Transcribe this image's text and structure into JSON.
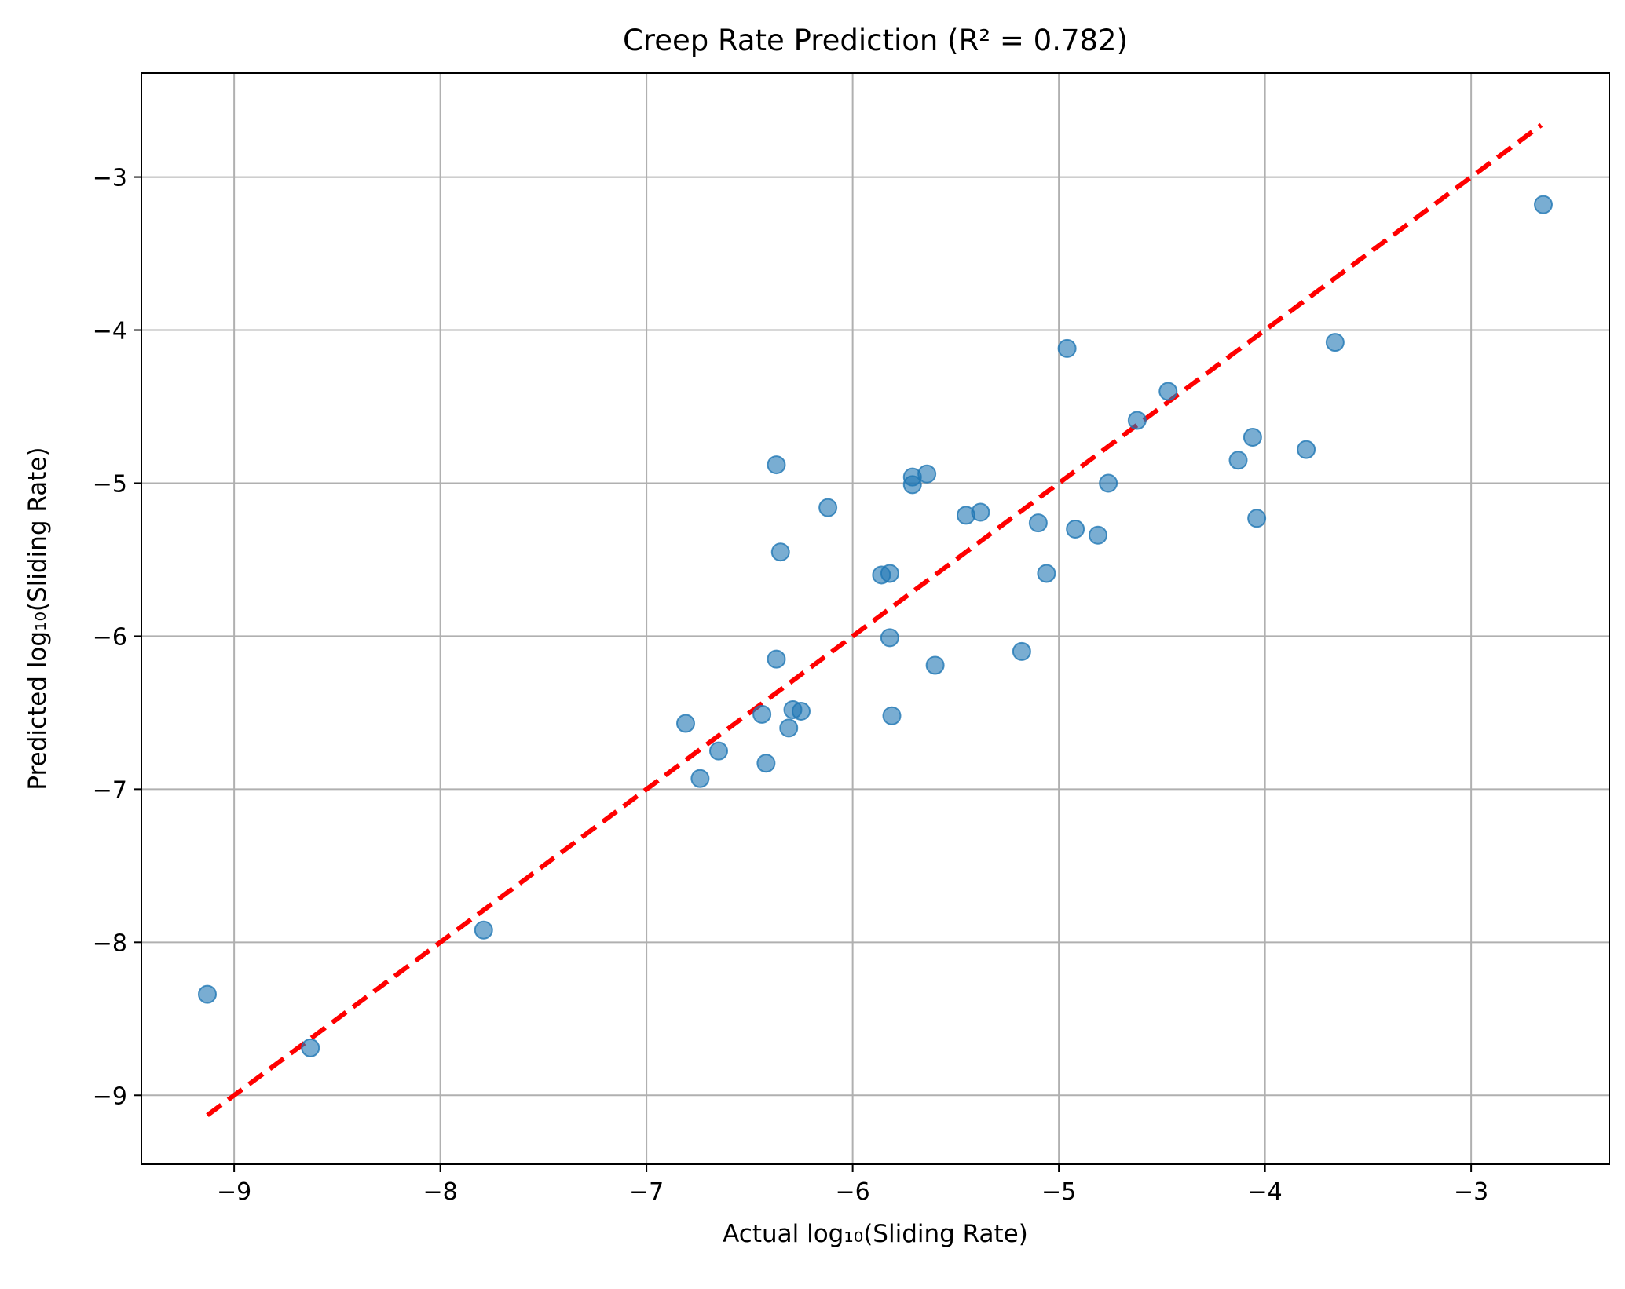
{
  "chart_data": {
    "type": "scatter",
    "title": "Creep Rate Prediction (R² = 0.782)",
    "xlabel": "Actual log₁₀(Sliding Rate)",
    "ylabel": "Predicted log₁₀(Sliding Rate)",
    "xlim": [
      -9.45,
      -2.33
    ],
    "ylim": [
      -9.45,
      -2.32
    ],
    "xticks": [
      -9,
      -8,
      -7,
      -6,
      -5,
      -4,
      -3
    ],
    "yticks": [
      -9,
      -8,
      -7,
      -6,
      -5,
      -4,
      -3
    ],
    "xtick_labels": [
      "−9",
      "−8",
      "−7",
      "−6",
      "−5",
      "−4",
      "−3"
    ],
    "ytick_labels": [
      "−9",
      "−8",
      "−7",
      "−6",
      "−5",
      "−4",
      "−3"
    ],
    "grid": true,
    "point_color": "#1f77b4",
    "point_alpha": 0.6,
    "reference_line": {
      "style": "dashed",
      "color": "#ff0000",
      "from": [
        -9.13,
        -9.13
      ],
      "to": [
        -2.66,
        -2.66
      ]
    },
    "points": [
      {
        "x": -9.13,
        "y": -8.34
      },
      {
        "x": -8.63,
        "y": -8.69
      },
      {
        "x": -7.79,
        "y": -7.92
      },
      {
        "x": -6.81,
        "y": -6.57
      },
      {
        "x": -6.74,
        "y": -6.93
      },
      {
        "x": -6.65,
        "y": -6.75
      },
      {
        "x": -6.44,
        "y": -6.51
      },
      {
        "x": -6.42,
        "y": -6.83
      },
      {
        "x": -6.37,
        "y": -4.88
      },
      {
        "x": -6.37,
        "y": -6.15
      },
      {
        "x": -6.35,
        "y": -5.45
      },
      {
        "x": -6.31,
        "y": -6.6
      },
      {
        "x": -6.29,
        "y": -6.48
      },
      {
        "x": -6.25,
        "y": -6.49
      },
      {
        "x": -6.12,
        "y": -5.16
      },
      {
        "x": -5.86,
        "y": -5.6
      },
      {
        "x": -5.82,
        "y": -5.59
      },
      {
        "x": -5.82,
        "y": -6.01
      },
      {
        "x": -5.81,
        "y": -6.52
      },
      {
        "x": -5.71,
        "y": -4.96
      },
      {
        "x": -5.71,
        "y": -5.01
      },
      {
        "x": -5.64,
        "y": -4.94
      },
      {
        "x": -5.6,
        "y": -6.19
      },
      {
        "x": -5.45,
        "y": -5.21
      },
      {
        "x": -5.38,
        "y": -5.19
      },
      {
        "x": -5.18,
        "y": -6.1
      },
      {
        "x": -5.1,
        "y": -5.26
      },
      {
        "x": -5.06,
        "y": -5.59
      },
      {
        "x": -4.96,
        "y": -4.12
      },
      {
        "x": -4.92,
        "y": -5.3
      },
      {
        "x": -4.81,
        "y": -5.34
      },
      {
        "x": -4.76,
        "y": -5.0
      },
      {
        "x": -4.62,
        "y": -4.59
      },
      {
        "x": -4.47,
        "y": -4.4
      },
      {
        "x": -4.13,
        "y": -4.85
      },
      {
        "x": -4.06,
        "y": -4.7
      },
      {
        "x": -4.04,
        "y": -5.23
      },
      {
        "x": -3.8,
        "y": -4.78
      },
      {
        "x": -3.66,
        "y": -4.08
      },
      {
        "x": -2.65,
        "y": -3.18
      }
    ]
  }
}
